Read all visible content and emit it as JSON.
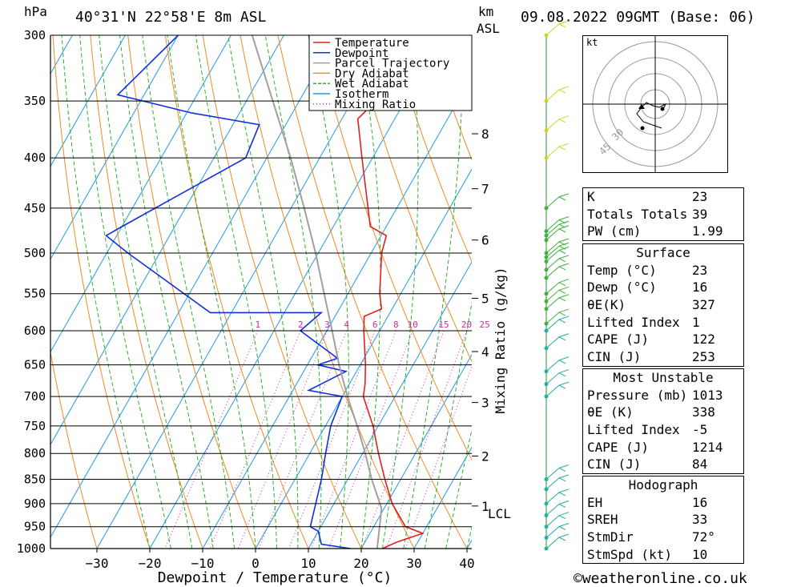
{
  "header": {
    "pressure_unit": "hPa",
    "location": "40°31'N  22°58'E  8m  ASL",
    "km_label": "km",
    "asl_label": "ASL",
    "datetime": "09.08.2022  09GMT  (Base: 06)"
  },
  "chart_data": {
    "type": "skew-t",
    "xlabel": "Dewpoint / Temperature (°C)",
    "right_axis_label": "Mixing Ratio (g/kg)",
    "x_ticks": [
      -30,
      -20,
      -10,
      0,
      10,
      20,
      30,
      40
    ],
    "x_tick_labels": [
      "−30",
      "−20",
      "−10",
      "0",
      "10",
      "20",
      "30",
      "40"
    ],
    "pressure_levels": [
      300,
      350,
      400,
      450,
      500,
      550,
      600,
      650,
      700,
      750,
      800,
      850,
      900,
      950,
      1000
    ],
    "km_ticks": [
      {
        "km": 8,
        "p": 378
      },
      {
        "km": 7,
        "p": 430
      },
      {
        "km": 6,
        "p": 485
      },
      {
        "km": 5,
        "p": 556
      },
      {
        "km": 4,
        "p": 630
      },
      {
        "km": 3,
        "p": 710
      },
      {
        "km": 2,
        "p": 805
      },
      {
        "km": 1,
        "p": 905
      }
    ],
    "lcl_label": "LCL",
    "lcl_pressure": 910,
    "mixing_ratio_values": [
      1,
      2,
      3,
      4,
      6,
      8,
      10,
      15,
      20,
      25
    ],
    "legend": [
      "Temperature",
      "Dewpoint",
      "Parcel Trajectory",
      "Dry Adiabat",
      "Wet Adiabat",
      "Isotherm",
      "Mixing Ratio"
    ],
    "series": [
      {
        "name": "Temperature",
        "color": "#e02020",
        "points": [
          [
            1000,
            24
          ],
          [
            985,
            26
          ],
          [
            965,
            30
          ],
          [
            950,
            26
          ],
          [
            900,
            21
          ],
          [
            850,
            17
          ],
          [
            800,
            13
          ],
          [
            750,
            9
          ],
          [
            700,
            4
          ],
          [
            680,
            3
          ],
          [
            650,
            1
          ],
          [
            600,
            -3
          ],
          [
            580,
            -4.5
          ],
          [
            570,
            -2
          ],
          [
            550,
            -4
          ],
          [
            500,
            -8
          ],
          [
            480,
            -9
          ],
          [
            470,
            -13
          ],
          [
            400,
            -22
          ],
          [
            365,
            -27
          ],
          [
            355,
            -26
          ],
          [
            345,
            -27
          ],
          [
            300,
            -33
          ]
        ]
      },
      {
        "name": "Dewpoint",
        "color": "#1030e0",
        "points": [
          [
            1000,
            18
          ],
          [
            990,
            12
          ],
          [
            960,
            10
          ],
          [
            950,
            8
          ],
          [
            850,
            5
          ],
          [
            800,
            3
          ],
          [
            750,
            1
          ],
          [
            700,
            0
          ],
          [
            690,
            -7
          ],
          [
            660,
            -2
          ],
          [
            650,
            -8
          ],
          [
            640,
            -5
          ],
          [
            600,
            -15
          ],
          [
            575,
            -13
          ],
          [
            575,
            -34
          ],
          [
            500,
            -56
          ],
          [
            480,
            -62
          ],
          [
            470,
            -60
          ],
          [
            400,
            -44
          ],
          [
            370,
            -45
          ],
          [
            360,
            -59
          ],
          [
            345,
            -75
          ],
          [
            300,
            -70
          ]
        ]
      },
      {
        "name": "Parcel Trajectory",
        "color": "#a0a0a0",
        "points": [
          [
            1000,
            23
          ],
          [
            960,
            21.5
          ],
          [
            910,
            19.5
          ],
          [
            850,
            14.5
          ],
          [
            800,
            10.5
          ],
          [
            750,
            6
          ],
          [
            700,
            1
          ],
          [
            650,
            -4
          ],
          [
            600,
            -9
          ],
          [
            550,
            -14.5
          ],
          [
            500,
            -20.5
          ],
          [
            450,
            -27.5
          ],
          [
            400,
            -35.5
          ],
          [
            350,
            -45
          ],
          [
            300,
            -56
          ]
        ]
      }
    ],
    "wind_barbs_p": [
      300,
      350,
      375,
      400,
      450,
      475,
      480,
      485,
      500,
      505,
      510,
      520,
      530,
      550,
      560,
      570,
      590,
      600,
      625,
      660,
      680,
      700,
      850,
      870,
      900,
      925,
      950,
      975,
      1000
    ]
  },
  "hodograph": {
    "unit": "kt",
    "ring_labels": [
      "30",
      "45"
    ]
  },
  "indices": {
    "basic": [
      {
        "label": "K",
        "value": "23"
      },
      {
        "label": "Totals Totals",
        "value": "39"
      },
      {
        "label": "PW (cm)",
        "value": "1.99"
      }
    ],
    "surface": {
      "title": "Surface",
      "rows": [
        {
          "label": "Temp (°C)",
          "value": "23"
        },
        {
          "label": "Dewp (°C)",
          "value": "16"
        },
        {
          "label": "θE(K)",
          "value": "327"
        },
        {
          "label": "Lifted Index",
          "value": "1"
        },
        {
          "label": "CAPE (J)",
          "value": "122"
        },
        {
          "label": "CIN (J)",
          "value": "253"
        }
      ]
    },
    "most_unstable": {
      "title": "Most Unstable",
      "rows": [
        {
          "label": "Pressure (mb)",
          "value": "1013"
        },
        {
          "label": "θE (K)",
          "value": "338"
        },
        {
          "label": "Lifted Index",
          "value": "-5"
        },
        {
          "label": "CAPE (J)",
          "value": "1214"
        },
        {
          "label": "CIN (J)",
          "value": "84"
        }
      ]
    },
    "hodograph": {
      "title": "Hodograph",
      "rows": [
        {
          "label": "EH",
          "value": "16"
        },
        {
          "label": "SREH",
          "value": "33"
        },
        {
          "label": "StmDir",
          "value": "72°"
        },
        {
          "label": "StmSpd (kt)",
          "value": "10"
        }
      ]
    }
  },
  "credit": "©weatheronline.co.uk"
}
